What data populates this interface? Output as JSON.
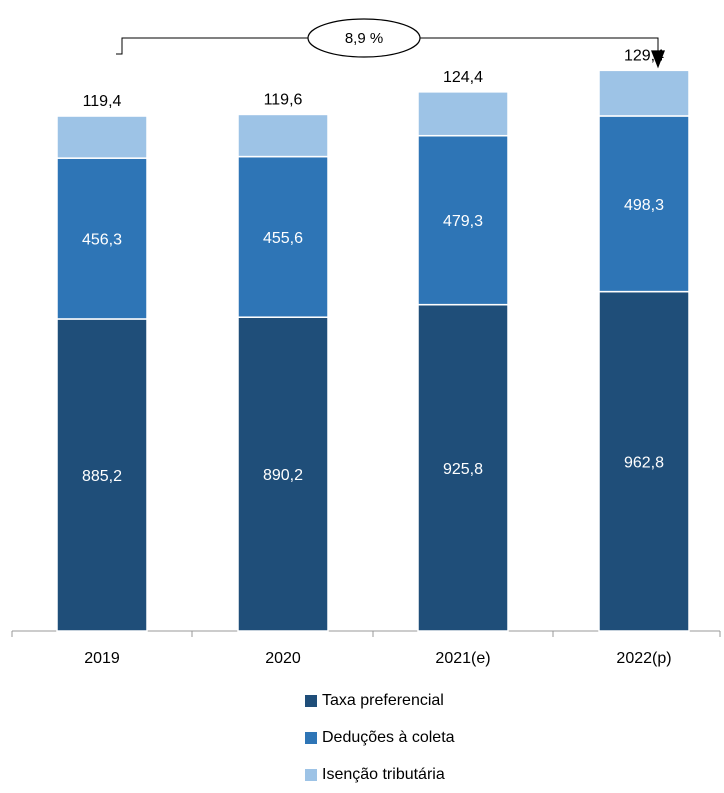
{
  "chart_data": {
    "type": "bar",
    "stacked": true,
    "categories": [
      "2019",
      "2020",
      "2021(e)",
      "2022(p)"
    ],
    "series": [
      {
        "name": "Taxa preferencial",
        "values": [
          885.2,
          890.2,
          925.8,
          962.8
        ],
        "labels": [
          "885,2",
          "890,2",
          "925,8",
          "962,8"
        ],
        "color": "#1f4e79"
      },
      {
        "name": "Deduções à coleta",
        "values": [
          456.3,
          455.6,
          479.3,
          498.3
        ],
        "labels": [
          "456,3",
          "455,6",
          "479,3",
          "498,3"
        ],
        "color": "#2e75b6"
      },
      {
        "name": "Isenção tributária",
        "values": [
          119.4,
          119.6,
          124.4,
          129.4
        ],
        "labels": [
          "119,4",
          "119,6",
          "124,4",
          "129,4"
        ],
        "color": "#9dc3e6"
      }
    ],
    "ylim": [
      0,
      1600
    ],
    "grid": false,
    "legend": "bottom",
    "annotation": {
      "text": "8,9 %",
      "from": "2019",
      "to": "2022(p)"
    }
  }
}
